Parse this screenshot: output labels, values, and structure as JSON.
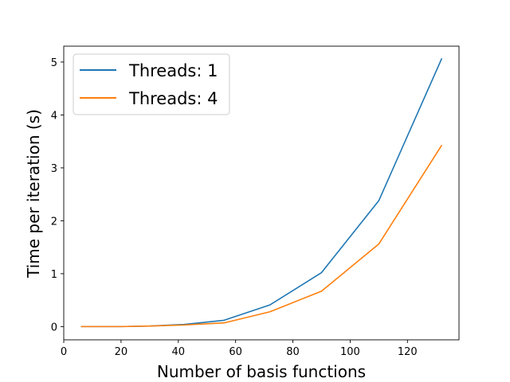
{
  "chart_data": {
    "type": "line",
    "title": "",
    "xlabel": "Number of basis functions",
    "ylabel": "Time per iteration (s)",
    "xlim": [
      0,
      138
    ],
    "ylim": [
      -0.25,
      5.3
    ],
    "xticks": [
      0,
      20,
      40,
      60,
      80,
      100,
      120
    ],
    "yticks": [
      0,
      1,
      2,
      3,
      4,
      5
    ],
    "grid": false,
    "legend_position": "top-left",
    "x": [
      6,
      14,
      20,
      30,
      42,
      56,
      72,
      90,
      110,
      132
    ],
    "series": [
      {
        "name": "Threads: 1",
        "color": "#1f77b4",
        "values": [
          0.0,
          0.0,
          0.0,
          0.01,
          0.04,
          0.12,
          0.41,
          1.02,
          2.38,
          5.07
        ]
      },
      {
        "name": "Threads: 4",
        "color": "#ff7f0e",
        "values": [
          0.0,
          0.0,
          0.0,
          0.01,
          0.03,
          0.07,
          0.28,
          0.67,
          1.56,
          3.43
        ]
      }
    ]
  }
}
